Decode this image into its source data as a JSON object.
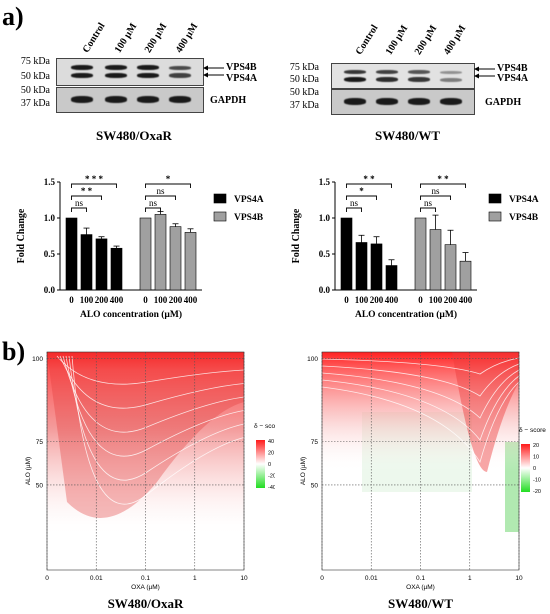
{
  "panel_a": {
    "label": "a)",
    "blots": [
      {
        "cell_line": "SW480/OxaR",
        "lanes": [
          "Control",
          "100 µM",
          "200 µM",
          "400 µM"
        ],
        "markers_top": [
          "75 kDa",
          "50 kDa"
        ],
        "markers_bottom": [
          "50 kDa",
          "37 kDa"
        ],
        "band_labels": [
          "VPS4B",
          "VPS4A"
        ],
        "loading_label": "GAPDH"
      },
      {
        "cell_line": "SW480/WT",
        "lanes": [
          "Control",
          "100 µM",
          "200 µM",
          "400 µM"
        ],
        "markers_top": [
          "75 kDa",
          "50 kDa"
        ],
        "markers_bottom": [
          "50 kDa",
          "37 kDa"
        ],
        "band_labels": [
          "VPS4B",
          "VPS4A"
        ],
        "loading_label": "GAPDH"
      }
    ]
  },
  "panel_b": {
    "label": "b)",
    "legend_title": "δ − score"
  },
  "chart_data": [
    {
      "type": "bar",
      "categories": [
        "0",
        "100",
        "200",
        "400"
      ],
      "series": [
        {
          "name": "VPS4A",
          "values": [
            1.0,
            0.77,
            0.71,
            0.58
          ],
          "errors": [
            0.0,
            0.09,
            0.03,
            0.03
          ],
          "color": "#000000"
        },
        {
          "name": "VPS4B",
          "values": [
            1.0,
            1.05,
            0.88,
            0.8
          ],
          "errors": [
            0.0,
            0.04,
            0.04,
            0.05
          ],
          "color": "#a0a0a0"
        }
      ],
      "xlabel": "ALO concentration (µM)",
      "ylabel": "Fold Change",
      "ylim": [
        0,
        1.5
      ],
      "yticks": [
        "0.0",
        "0.5",
        "1.0",
        "1.5"
      ],
      "legend": "right",
      "significance": [
        {
          "series": "VPS4A",
          "compare": "100",
          "label": "ns"
        },
        {
          "series": "VPS4A",
          "compare": "200",
          "label": "* *"
        },
        {
          "series": "VPS4A",
          "compare": "400",
          "label": "* * *"
        },
        {
          "series": "VPS4B",
          "compare": "100",
          "label": "ns"
        },
        {
          "series": "VPS4B",
          "compare": "200",
          "label": "ns"
        },
        {
          "series": "VPS4B",
          "compare": "400",
          "label": "*"
        }
      ]
    },
    {
      "type": "bar",
      "categories": [
        "0",
        "100",
        "200",
        "400"
      ],
      "series": [
        {
          "name": "VPS4A",
          "values": [
            1.0,
            0.66,
            0.64,
            0.34
          ],
          "errors": [
            0.0,
            0.1,
            0.1,
            0.08
          ],
          "color": "#000000"
        },
        {
          "name": "VPS4B",
          "values": [
            1.0,
            0.84,
            0.63,
            0.4
          ],
          "errors": [
            0.0,
            0.2,
            0.2,
            0.12
          ],
          "color": "#a0a0a0"
        }
      ],
      "xlabel": "ALO concentration (µM)",
      "ylabel": "Fold Change",
      "ylim": [
        0,
        1.5
      ],
      "yticks": [
        "0.0",
        "0.5",
        "1.0",
        "1.5"
      ],
      "legend": "right",
      "significance": [
        {
          "series": "VPS4A",
          "compare": "100",
          "label": "ns"
        },
        {
          "series": "VPS4A",
          "compare": "200",
          "label": "*"
        },
        {
          "series": "VPS4A",
          "compare": "400",
          "label": "* *"
        },
        {
          "series": "VPS4B",
          "compare": "100",
          "label": "ns"
        },
        {
          "series": "VPS4B",
          "compare": "200",
          "label": "ns"
        },
        {
          "series": "VPS4B",
          "compare": "400",
          "label": "* *"
        }
      ]
    },
    {
      "type": "heatmap",
      "title": "SW480/OxaR",
      "xlabel": "OXA (µM)",
      "ylabel": "ALO (µM)",
      "xticks": [
        "0",
        "0.01",
        "0.1",
        "1",
        "10"
      ],
      "yticks": [
        "50",
        "75",
        "100"
      ],
      "legend_title": "δ − score",
      "colorbar_ticks": [
        "40",
        "20",
        "0",
        "-20",
        "-40"
      ],
      "colorbar_range": [
        -40,
        40
      ],
      "synergy": "red region at top, strongest at ALO 100 µM across all OXA, fading towards ALO 50 µM"
    },
    {
      "type": "heatmap",
      "title": "SW480/WT",
      "xlabel": "OXA (µM)",
      "ylabel": "ALO (µM)",
      "xticks": [
        "0",
        "0.01",
        "0.1",
        "1",
        "10"
      ],
      "yticks": [
        "50",
        "75",
        "100"
      ],
      "legend_title": "δ − score",
      "colorbar_ticks": [
        "20",
        "10",
        "0",
        "-10",
        "-20"
      ],
      "colorbar_range": [
        -20,
        20
      ],
      "synergy": "red region at ALO 100 µM, extending down around OXA 1 µM; slight green near OXA 10 µM"
    }
  ]
}
